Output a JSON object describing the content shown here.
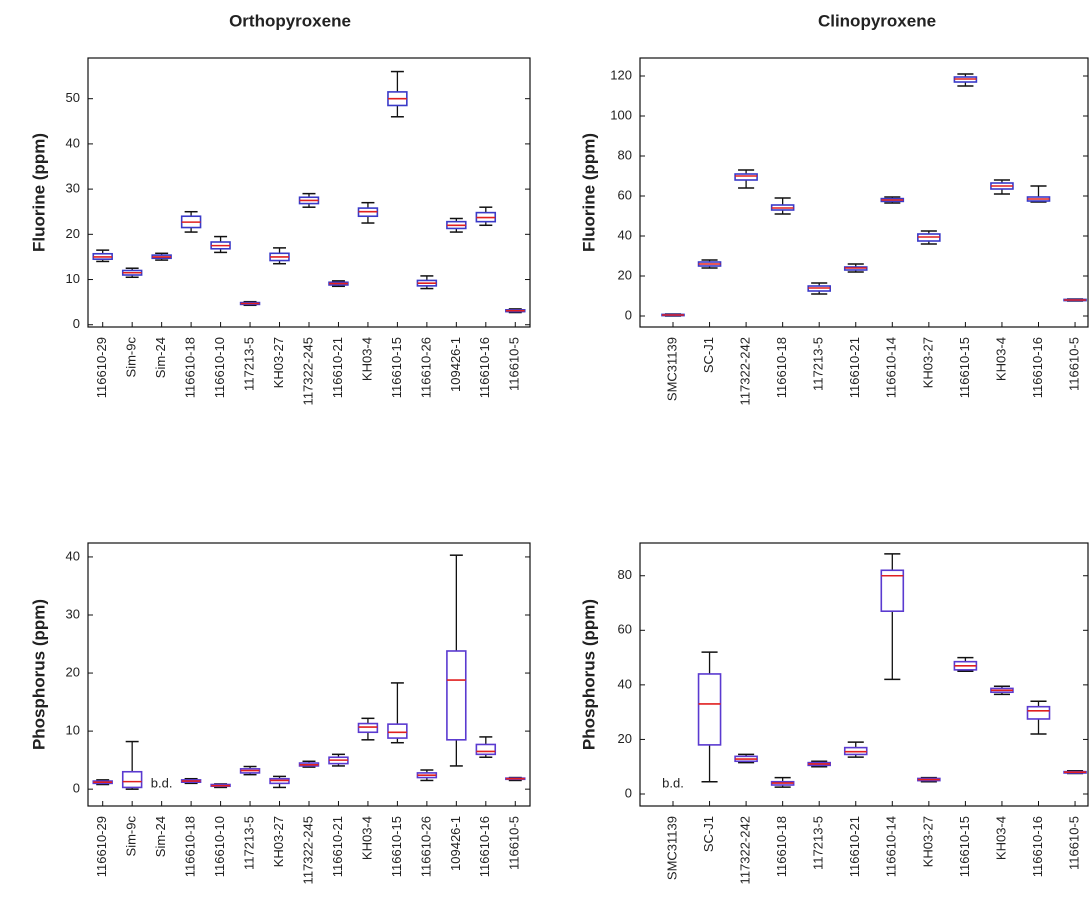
{
  "chart_data": [
    {
      "type": "box",
      "title": "Orthopyroxene",
      "y_label": "Fluorine (ppm)",
      "categories": [
        "116610-29",
        "Sim-9c",
        "Sim-24",
        "116610-18",
        "116610-10",
        "117213-5",
        "KH03-27",
        "117322-245",
        "116610-21",
        "KH03-4",
        "116610-15",
        "116610-26",
        "109426-1",
        "116610-16",
        "116610-5"
      ],
      "whislo": [
        14,
        10.5,
        14.3,
        20.5,
        16,
        4.3,
        13.5,
        26,
        8.5,
        22.5,
        46,
        8,
        20.5,
        22,
        2.7
      ],
      "q1": [
        14.5,
        11,
        14.7,
        21.5,
        16.8,
        4.5,
        14.2,
        26.8,
        8.8,
        24,
        48.5,
        8.6,
        21.3,
        22.8,
        2.9
      ],
      "median": [
        15,
        11.5,
        15,
        22.7,
        17.5,
        4.7,
        15,
        27.5,
        9.1,
        25,
        50,
        9.2,
        22,
        23.7,
        3.1
      ],
      "q3": [
        15.7,
        12,
        15.4,
        24,
        18.3,
        4.9,
        15.8,
        28.2,
        9.4,
        25.8,
        51.5,
        9.8,
        22.8,
        24.8,
        3.3
      ],
      "whishi": [
        16.5,
        12.5,
        15.8,
        25,
        19.5,
        5.1,
        17,
        29,
        9.7,
        27,
        56,
        10.8,
        23.5,
        26,
        3.5
      ],
      "ylim": [
        -0.5,
        59
      ],
      "yticks": [
        0,
        10,
        20,
        30,
        40,
        50
      ],
      "box_color": "#3a3ac8",
      "median_color": "#e02020",
      "whisker_color": "#111111"
    },
    {
      "type": "box",
      "title": "Clinopyroxene",
      "y_label": "Fluorine (ppm)",
      "categories": [
        "SMC31139",
        "SC-J1",
        "117322-242",
        "116610-18",
        "117213-5",
        "116610-21",
        "116610-14",
        "KH03-27",
        "116610-15",
        "KH03-4",
        "116610-16",
        "116610-5"
      ],
      "whislo": [
        0,
        24,
        64,
        51,
        11,
        22,
        56.5,
        36,
        115,
        61,
        57,
        7.5
      ],
      "q1": [
        0.2,
        25,
        68,
        53,
        12.5,
        23,
        57.3,
        37.5,
        117,
        63.5,
        57.5,
        7.7
      ],
      "median": [
        0.5,
        26,
        70,
        54,
        14,
        24,
        58,
        39.5,
        118.5,
        65,
        58.5,
        8
      ],
      "q3": [
        0.8,
        27,
        71,
        55.5,
        15,
        24.5,
        58.7,
        41,
        119.5,
        66.5,
        59.5,
        8.3
      ],
      "whishi": [
        1,
        28,
        73,
        59,
        16.5,
        26,
        59.5,
        42.5,
        121,
        68,
        65,
        8.5
      ],
      "ylim": [
        -5.5,
        129
      ],
      "yticks": [
        0,
        20,
        40,
        60,
        80,
        100,
        120
      ],
      "box_color": "#3a3ac8",
      "median_color": "#e02020",
      "whisker_color": "#111111"
    },
    {
      "type": "box",
      "y_label": "Phosphorus (ppm)",
      "categories": [
        "116610-29",
        "Sim-9c",
        "Sim-24",
        "116610-18",
        "116610-10",
        "117213-5",
        "KH03-27",
        "117322-245",
        "116610-21",
        "KH03-4",
        "116610-15",
        "116610-26",
        "109426-1",
        "116610-16",
        "116610-5"
      ],
      "whislo": [
        0.8,
        0,
        null,
        1,
        0.3,
        2.5,
        0.3,
        3.8,
        4,
        8.5,
        8,
        1.5,
        4,
        5.5,
        1.5
      ],
      "q1": [
        1,
        0.3,
        null,
        1.2,
        0.5,
        2.8,
        1,
        4,
        4.4,
        9.8,
        8.8,
        2,
        8.5,
        6,
        1.7
      ],
      "median": [
        1.2,
        1.3,
        null,
        1.4,
        0.6,
        3.2,
        1.5,
        4.2,
        5,
        10.7,
        9.8,
        2.4,
        18.8,
        6.5,
        1.8
      ],
      "q3": [
        1.4,
        3,
        null,
        1.6,
        0.8,
        3.5,
        1.8,
        4.5,
        5.5,
        11.3,
        11.2,
        2.8,
        23.8,
        7.7,
        1.9
      ],
      "whishi": [
        1.6,
        8.2,
        null,
        1.8,
        0.9,
        3.9,
        2.2,
        4.8,
        6,
        12.2,
        18.3,
        3.3,
        40.3,
        9,
        2
      ],
      "ylim": [
        -2.9,
        42.4
      ],
      "yticks": [
        0,
        10,
        20,
        30,
        40
      ],
      "annotations": [
        {
          "text": "b.d.",
          "category_index": 2
        }
      ],
      "box_color": "#5a3ad0",
      "median_color": "#e02020",
      "whisker_color": "#111111"
    },
    {
      "type": "box",
      "y_label": "Phosphorus (ppm)",
      "categories": [
        "SMC31139",
        "SC-J1",
        "117322-242",
        "116610-18",
        "117213-5",
        "116610-21",
        "116610-14",
        "KH03-27",
        "116610-15",
        "KH03-4",
        "116610-16",
        "116610-5"
      ],
      "whislo": [
        null,
        4.5,
        11.5,
        2.5,
        10,
        13.5,
        42,
        4.5,
        45,
        36.5,
        22,
        7.5
      ],
      "q1": [
        null,
        18,
        12,
        3.3,
        10.5,
        14.5,
        67,
        4.9,
        45.5,
        37.3,
        27.5,
        7.7
      ],
      "median": [
        null,
        33,
        12.8,
        4,
        11,
        15.5,
        80,
        5.3,
        47,
        38,
        30.5,
        8
      ],
      "q3": [
        null,
        44,
        13.8,
        4.5,
        11.5,
        17,
        82,
        5.7,
        48.5,
        38.7,
        32,
        8.2
      ],
      "whishi": [
        null,
        52,
        14.5,
        6,
        12,
        19,
        88,
        6,
        50,
        39.5,
        34,
        8.5
      ],
      "ylim": [
        -4.4,
        92
      ],
      "yticks": [
        0,
        20,
        40,
        60,
        80
      ],
      "annotations": [
        {
          "text": "b.d.",
          "category_index": 0
        }
      ],
      "box_color": "#5a3ad0",
      "median_color": "#e02020",
      "whisker_color": "#111111"
    }
  ]
}
